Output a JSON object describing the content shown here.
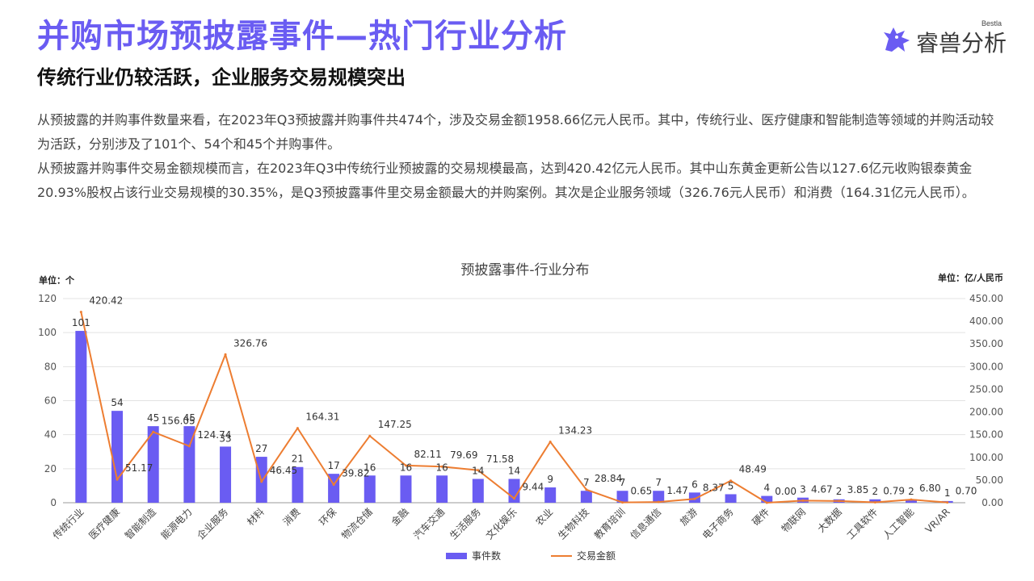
{
  "header": {
    "title": "并购市场预披露事件—热门行业分析",
    "subtitle": "传统行业仍较活跃，企业服务交易规模突出",
    "logo_en": "Bestla",
    "logo_cn": "睿兽分析"
  },
  "body": {
    "para1": "从预披露的并购事件数量来看，在2023年Q3预披露并购事件共474个，涉及交易金额1958.66亿元人民币。其中，传统行业、医疗健康和智能制造等领域的并购活动较为活跃，分别涉及了101个、54个和45个并购事件。",
    "para2": "从预披露并购事件交易金额规模而言，在2023年Q3中传统行业预披露的交易规模最高，达到420.42亿元人民币。其中山东黄金更新公告以127.6亿元收购银泰黄金20.93%股权占该行业交易规模的30.35%，是Q3预披露事件里交易金额最大的并购案例。其次是企业服务领域（326.76元人民币）和消费（164.31亿元人民币）。"
  },
  "colors": {
    "accent": "#6a5cf2",
    "bar": "#6a5cf2",
    "line": "#ed7d31"
  },
  "chart_data": {
    "type": "bar",
    "title": "预披露事件-行业分布",
    "left_unit": "单位：个",
    "right_unit": "单位：亿/人民币",
    "categories": [
      "传统行业",
      "医疗健康",
      "智能制造",
      "能源电力",
      "企业服务",
      "材料",
      "消费",
      "环保",
      "物流仓储",
      "金融",
      "汽车交通",
      "生活服务",
      "文化娱乐",
      "农业",
      "生物科技",
      "教育培训",
      "信息通信",
      "旅游",
      "电子商务",
      "硬件",
      "物联网",
      "大数据",
      "工具软件",
      "人工智能",
      "VR/AR"
    ],
    "series": [
      {
        "name": "事件数",
        "type": "bar",
        "axis": "left",
        "values": [
          101,
          54,
          45,
          45,
          33,
          27,
          21,
          17,
          16,
          16,
          16,
          14,
          14,
          9,
          7,
          7,
          7,
          6,
          5,
          4,
          3,
          2,
          2,
          2,
          1
        ],
        "labels": [
          "101",
          "54",
          "45",
          "45",
          "33",
          "27",
          "21",
          "17",
          "16",
          "16",
          "16",
          "14",
          "14",
          "9",
          "7",
          "7",
          "7",
          "6",
          "5",
          "4",
          "3",
          "2",
          "2",
          "2",
          "1"
        ]
      },
      {
        "name": "交易金额",
        "type": "line",
        "axis": "right",
        "values": [
          420.42,
          51.17,
          156.05,
          124.74,
          326.76,
          46.45,
          164.31,
          39.82,
          147.25,
          82.11,
          79.69,
          71.58,
          9.44,
          134.23,
          28.84,
          0.65,
          1.47,
          8.37,
          48.49,
          0.0,
          4.67,
          3.85,
          0.79,
          6.8,
          0.7
        ],
        "labels": [
          "420.42",
          "51.17",
          "156.05",
          "124.74",
          "326.76",
          "46.45",
          "164.31",
          "39.82",
          "147.25",
          "82.11",
          "79.69",
          "71.58",
          "9.44",
          "134.23",
          "28.84",
          "0.65",
          "1.47",
          "8.37",
          "48.49",
          "0.00",
          "4.67",
          "3.85",
          "0.79",
          "6.80",
          "0.70"
        ]
      }
    ],
    "ylim_left": [
      0,
      120
    ],
    "yticks_left": [
      "0",
      "20",
      "40",
      "60",
      "80",
      "100",
      "120"
    ],
    "ylim_right": [
      0,
      450
    ],
    "yticks_right": [
      "0.00",
      "50.00",
      "100.00",
      "150.00",
      "200.00",
      "250.00",
      "300.00",
      "350.00",
      "400.00",
      "450.00"
    ],
    "grid": true,
    "legend_position": "bottom"
  }
}
